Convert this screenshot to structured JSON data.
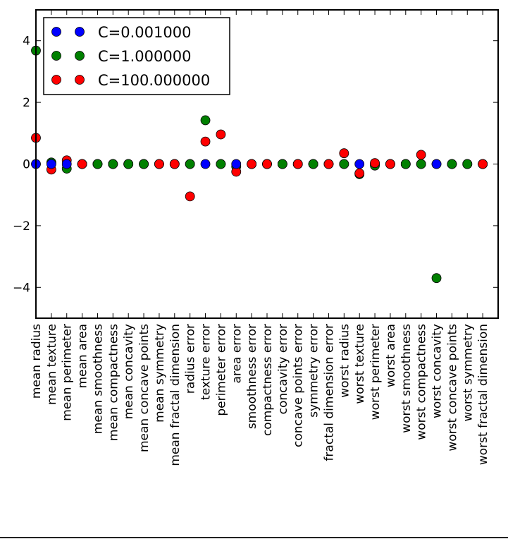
{
  "chart_data": {
    "type": "scatter",
    "title": "",
    "xlabel": "",
    "ylabel": "",
    "xlim": [
      0,
      30
    ],
    "ylim": [
      -5,
      5
    ],
    "grid": false,
    "legend_position": "top-left",
    "yticks": [
      -4,
      -2,
      0,
      2,
      4
    ],
    "ytick_labels": [
      "−4",
      "−2",
      "0",
      "2",
      "4"
    ],
    "categories": [
      "mean radius",
      "mean texture",
      "mean perimeter",
      "mean area",
      "mean smoothness",
      "mean compactness",
      "mean concavity",
      "mean concave points",
      "mean symmetry",
      "mean fractal dimension",
      "radius error",
      "texture error",
      "perimeter error",
      "area error",
      "smoothness error",
      "compactness error",
      "concavity error",
      "concave points error",
      "symmetry error",
      "fractal dimension error",
      "worst radius",
      "worst texture",
      "worst perimeter",
      "worst area",
      "worst smoothness",
      "worst compactness",
      "worst concavity",
      "worst concave points",
      "worst symmetry",
      "worst fractal dimension"
    ],
    "series": [
      {
        "name": "C=0.001000",
        "color": "#0000ff",
        "values": [
          0.0,
          0.0,
          0.0,
          0.0,
          0.0,
          0.0,
          0.0,
          0.0,
          0.0,
          0.0,
          0.0,
          0.0,
          0.0,
          0.0,
          0.0,
          0.0,
          0.0,
          0.0,
          0.0,
          0.0,
          0.0,
          0.0,
          0.0,
          0.0,
          0.0,
          0.0,
          0.0,
          0.0,
          0.0,
          0.0
        ]
      },
      {
        "name": "C=1.000000",
        "color": "#008000",
        "values": [
          3.68,
          0.05,
          -0.15,
          0.0,
          0.0,
          0.0,
          0.0,
          0.0,
          0.0,
          0.0,
          0.0,
          1.42,
          0.0,
          -0.08,
          0.0,
          0.0,
          0.0,
          0.0,
          0.0,
          0.0,
          0.0,
          -0.33,
          -0.05,
          0.0,
          0.0,
          0.0,
          -3.7,
          0.0,
          0.0,
          0.0
        ]
      },
      {
        "name": "C=100.000000",
        "color": "#ff0000",
        "values": [
          0.85,
          -0.18,
          0.12,
          0.0,
          0.0,
          0.0,
          0.0,
          0.0,
          0.0,
          0.0,
          -1.05,
          0.73,
          0.96,
          -0.25,
          0.0,
          0.0,
          0.0,
          0.0,
          0.0,
          0.0,
          0.35,
          -0.3,
          0.03,
          0.0,
          0.0,
          0.3,
          0.0,
          0.0,
          0.0,
          0.0
        ]
      }
    ],
    "overlap_top_at_zero": [
      "C=0.001000",
      "C=0.001000",
      "C=0.001000",
      "C=100.000000",
      "C=1.000000",
      "C=1.000000",
      "C=1.000000",
      "C=1.000000",
      "C=100.000000",
      "C=100.000000",
      "C=1.000000",
      "C=0.001000",
      "C=1.000000",
      "C=0.001000",
      "C=100.000000",
      "C=100.000000",
      "C=1.000000",
      "C=100.000000",
      "C=1.000000",
      "C=100.000000",
      "C=1.000000",
      "C=0.001000",
      "C=100.000000",
      "C=100.000000",
      "C=1.000000",
      "C=1.000000",
      "C=0.001000",
      "C=1.000000",
      "C=1.000000",
      "C=100.000000"
    ]
  }
}
